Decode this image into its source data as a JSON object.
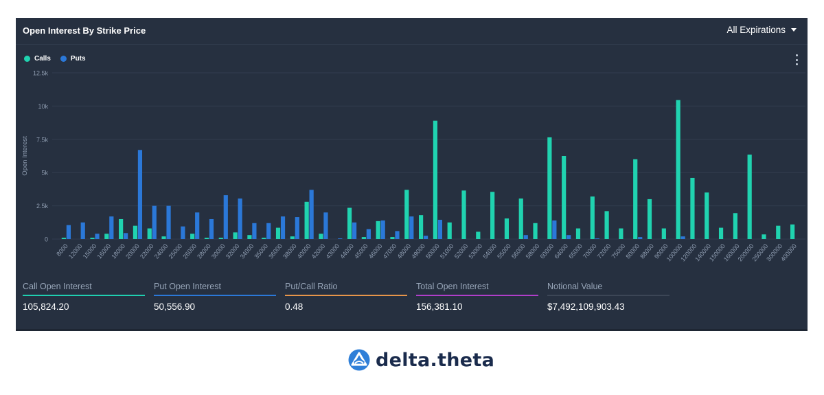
{
  "header": {
    "title": "Open Interest By Strike Price",
    "expiry_selected": "All Expirations"
  },
  "legend": [
    {
      "name": "Calls",
      "color": "#20d3b0"
    },
    {
      "name": "Puts",
      "color": "#2b78d8"
    }
  ],
  "menu_icon": "more-vertical-icon",
  "stats": [
    {
      "label": "Call Open Interest",
      "value": "105,824.20",
      "color": "#1fcfb0"
    },
    {
      "label": "Put Open Interest",
      "value": "50,556.90",
      "color": "#2b78d8"
    },
    {
      "label": "Put/Call Ratio",
      "value": "0.48",
      "color": "#e6954a"
    },
    {
      "label": "Total Open Interest",
      "value": "156,381.10",
      "color": "#b03ec9"
    },
    {
      "label": "Notional Value",
      "value": "$7,492,109,903.43",
      "color": "#3c4656"
    }
  ],
  "logo": {
    "text": "delta.theta",
    "icon": "delta-theta-logo-icon"
  },
  "chart_data": {
    "type": "bar",
    "ylabel": "Open Interest",
    "ylim": [
      0,
      12500
    ],
    "yticks": [
      0,
      2500,
      5000,
      7500,
      10000,
      12500
    ],
    "ytick_labels": [
      "0",
      "2.5k",
      "5k",
      "7.5k",
      "10k",
      "12.5k"
    ],
    "grid": true,
    "legend_position": "top-left",
    "categories": [
      "8000",
      "12000",
      "15000",
      "16000",
      "18000",
      "20000",
      "22000",
      "24000",
      "25000",
      "26000",
      "28000",
      "30000",
      "32000",
      "34000",
      "35000",
      "36000",
      "38000",
      "40000",
      "42000",
      "43000",
      "44000",
      "45000",
      "46000",
      "47000",
      "48000",
      "49000",
      "50000",
      "51000",
      "52000",
      "53000",
      "54000",
      "55000",
      "56000",
      "58000",
      "60000",
      "64000",
      "65000",
      "70000",
      "72000",
      "75000",
      "80000",
      "88000",
      "90000",
      "100000",
      "120000",
      "140000",
      "150000",
      "160000",
      "200000",
      "250000",
      "300000",
      "400000"
    ],
    "series": [
      {
        "name": "Calls",
        "color": "#20d3b0",
        "values": [
          100,
          0,
          100,
          400,
          1500,
          1000,
          800,
          200,
          0,
          400,
          100,
          100,
          500,
          300,
          100,
          850,
          200,
          2800,
          400,
          0,
          2350,
          150,
          1350,
          150,
          3700,
          1800,
          8900,
          1250,
          3650,
          550,
          3550,
          1550,
          3050,
          1200,
          7650,
          6250,
          800,
          3200,
          2100,
          800,
          6000,
          3000,
          800,
          10450,
          4600,
          3500,
          850,
          1950,
          6350,
          350,
          1000,
          1100
        ]
      },
      {
        "name": "Puts",
        "color": "#2b78d8",
        "values": [
          1050,
          1250,
          400,
          1700,
          450,
          6700,
          2500,
          2500,
          950,
          2000,
          1500,
          3300,
          3050,
          1200,
          1200,
          1700,
          1650,
          3700,
          2000,
          50,
          1250,
          750,
          1400,
          600,
          1700,
          250,
          1450,
          0,
          0,
          0,
          0,
          0,
          300,
          0,
          1400,
          300,
          0,
          50,
          0,
          0,
          150,
          0,
          0,
          200,
          0,
          0,
          0,
          0,
          0,
          0,
          0,
          0
        ]
      }
    ]
  }
}
